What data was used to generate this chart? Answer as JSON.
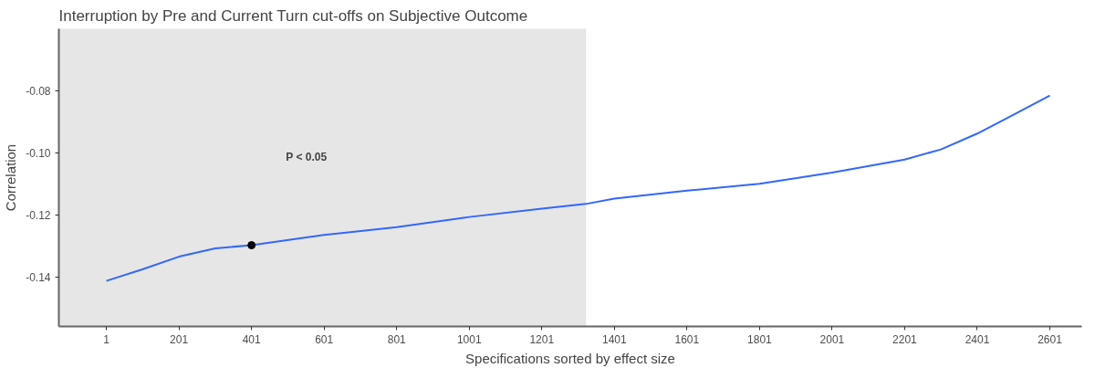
{
  "chart_data": {
    "type": "line",
    "title": "Interruption by Pre and Current Turn cut-offs on Subjective Outcome",
    "xlabel": "Specifications sorted by effect size",
    "ylabel": "Correlation",
    "series": [
      {
        "color": "#3366ff",
        "x": [
          1,
          100,
          201,
          301,
          401,
          601,
          801,
          1001,
          1201,
          1322,
          1401,
          1601,
          1801,
          2001,
          2201,
          2301,
          2401,
          2501,
          2601
        ],
        "values": [
          -0.1413,
          -0.1376,
          -0.1335,
          -0.1308,
          -0.1298,
          -0.1265,
          -0.124,
          -0.1207,
          -0.118,
          -0.1165,
          -0.1148,
          -0.1122,
          -0.11,
          -0.1064,
          -0.1022,
          -0.0989,
          -0.0938,
          -0.0877,
          -0.0815
        ]
      },
      {
        "type": "scatter",
        "color": "#000000",
        "x": [
          401
        ],
        "values": [
          -0.1298
        ]
      }
    ],
    "bands": [
      {
        "axis": "x",
        "from": -130,
        "to": 1322,
        "label": "P < 0.05",
        "color": "#e6e6e6"
      }
    ],
    "xlim": [
      -130,
      2689
    ],
    "ylim": [
      -0.156,
      -0.06
    ],
    "xticks": [
      1,
      201,
      401,
      601,
      801,
      1001,
      1201,
      1401,
      1601,
      1801,
      2001,
      2201,
      2401,
      2601
    ],
    "yticks": [
      {
        "value": -0.14,
        "label": "-0.14"
      },
      {
        "value": -0.12,
        "label": "-0.12"
      },
      {
        "value": -0.1,
        "label": "-0.10"
      },
      {
        "value": -0.08,
        "label": "-0.08"
      }
    ],
    "grid": false,
    "line_style": "solid"
  }
}
